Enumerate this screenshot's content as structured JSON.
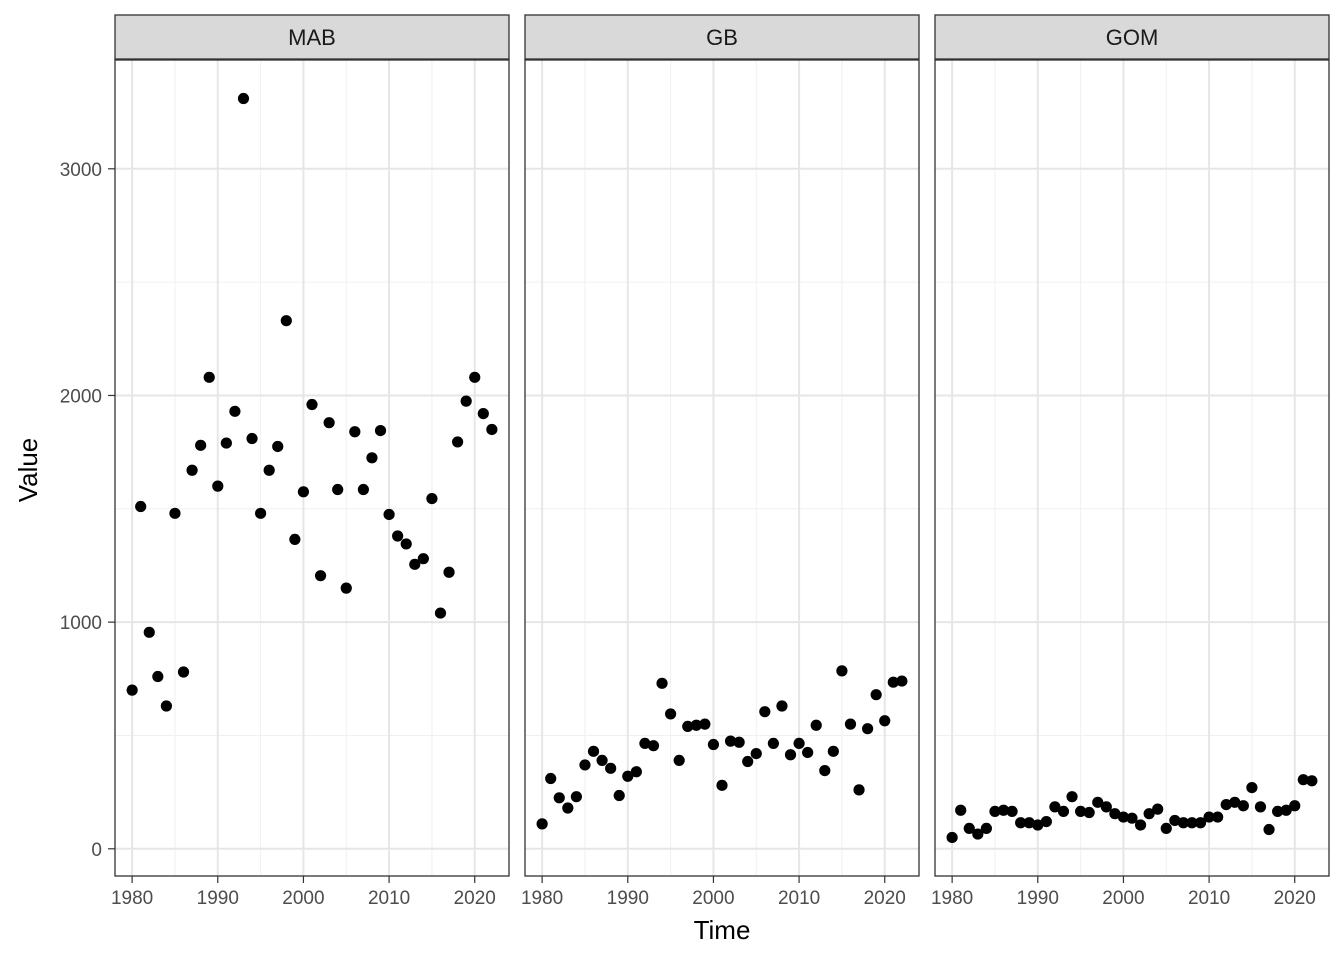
{
  "chart_data": {
    "type": "scatter",
    "xlabel": "Time",
    "ylabel": "Value",
    "xlim": [
      1978,
      2024
    ],
    "ylim": [
      -120,
      3480
    ],
    "x_ticks": [
      1980,
      1990,
      2000,
      2010,
      2020
    ],
    "x_tick_labels": [
      "1980",
      "1990",
      "2000",
      "2010",
      "2020"
    ],
    "y_ticks": [
      0,
      1000,
      2000,
      3000
    ],
    "y_tick_labels": [
      "0",
      "1000",
      "2000",
      "3000"
    ],
    "grid": true,
    "point_color": "#000000",
    "strip_fill": "#d9d9d9",
    "panels": [
      {
        "name": "MAB",
        "x": [
          1980,
          1981,
          1982,
          1983,
          1984,
          1985,
          1986,
          1987,
          1988,
          1989,
          1990,
          1991,
          1992,
          1993,
          1994,
          1995,
          1996,
          1997,
          1998,
          1999,
          2000,
          2001,
          2002,
          2003,
          2004,
          2005,
          2006,
          2007,
          2008,
          2009,
          2010,
          2011,
          2012,
          2013,
          2014,
          2015,
          2016,
          2017,
          2018,
          2019,
          2020,
          2021,
          2022
        ],
        "y": [
          700,
          1510,
          955,
          760,
          630,
          1480,
          780,
          1670,
          1780,
          2080,
          1600,
          1790,
          1930,
          3310,
          1810,
          1480,
          1670,
          1775,
          2330,
          1365,
          1575,
          1960,
          1205,
          1880,
          1585,
          1150,
          1840,
          1585,
          1725,
          1845,
          1475,
          1380,
          1345,
          1255,
          1280,
          1545,
          1040,
          1220,
          1795,
          1975,
          2080,
          1920,
          1850
        ]
      },
      {
        "name": "GB",
        "x": [
          1980,
          1981,
          1982,
          1983,
          1984,
          1985,
          1986,
          1987,
          1988,
          1989,
          1990,
          1991,
          1992,
          1993,
          1994,
          1995,
          1996,
          1997,
          1998,
          1999,
          2000,
          2001,
          2002,
          2003,
          2004,
          2005,
          2006,
          2007,
          2008,
          2009,
          2010,
          2011,
          2012,
          2013,
          2014,
          2015,
          2016,
          2017,
          2018,
          2019,
          2020,
          2021,
          2022
        ],
        "y": [
          110,
          310,
          225,
          180,
          230,
          370,
          430,
          390,
          355,
          235,
          320,
          340,
          465,
          455,
          730,
          595,
          390,
          540,
          545,
          550,
          460,
          280,
          475,
          470,
          385,
          420,
          605,
          465,
          630,
          415,
          465,
          425,
          545,
          345,
          430,
          785,
          550,
          260,
          530,
          680,
          565,
          735,
          740
        ]
      },
      {
        "name": "GOM",
        "x": [
          1980,
          1981,
          1982,
          1983,
          1984,
          1985,
          1986,
          1987,
          1988,
          1989,
          1990,
          1991,
          1992,
          1993,
          1994,
          1995,
          1996,
          1997,
          1998,
          1999,
          2000,
          2001,
          2002,
          2003,
          2004,
          2005,
          2006,
          2007,
          2008,
          2009,
          2010,
          2011,
          2012,
          2013,
          2014,
          2015,
          2016,
          2017,
          2018,
          2019,
          2020,
          2021,
          2022
        ],
        "y": [
          50,
          170,
          90,
          65,
          90,
          165,
          170,
          165,
          115,
          115,
          105,
          120,
          185,
          165,
          230,
          165,
          160,
          205,
          185,
          155,
          140,
          135,
          105,
          155,
          175,
          90,
          125,
          115,
          115,
          115,
          140,
          140,
          195,
          205,
          190,
          270,
          185,
          85,
          165,
          170,
          190,
          305,
          300
        ]
      }
    ]
  }
}
